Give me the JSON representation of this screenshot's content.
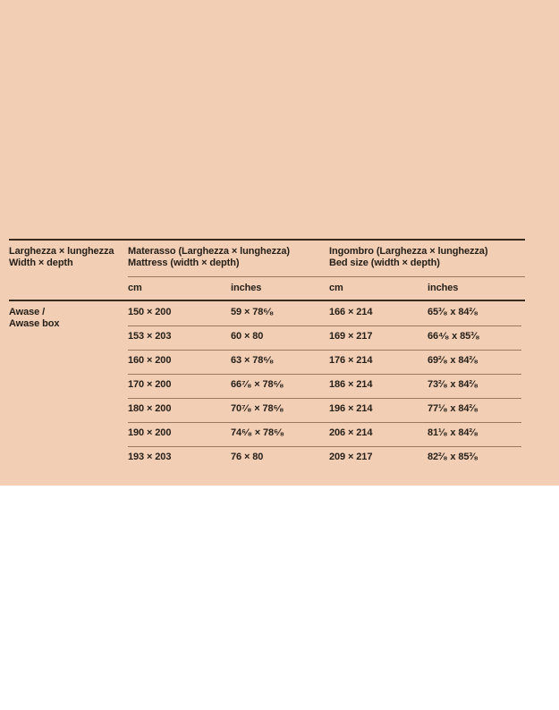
{
  "theme": {
    "panel_bg": "#f2ceb5",
    "rule_dark": "#3a2b1e",
    "rule_light": "#9a785f",
    "text": "#262019"
  },
  "table": {
    "groups": {
      "sizes": {
        "line1": "Larghezza × lunghezza",
        "line2": "Width × depth"
      },
      "mattress": {
        "line1": "Materasso (Larghezza × lunghezza)",
        "line2": "Mattress (width × depth)"
      },
      "bed": {
        "line1": "Ingombro (Larghezza × lunghezza)",
        "line2": "Bed size (width × depth)"
      }
    },
    "subheaders": {
      "mattress_cm": "cm",
      "mattress_inches": "inches",
      "bed_cm": "cm",
      "bed_inches": "inches"
    },
    "row_label": {
      "line1": "Awase /",
      "line2": "Awase box"
    },
    "rows": [
      {
        "mattress_cm": "150 × 200",
        "mattress_inches": "59 × 78⁶⁄₈",
        "bed_cm": "166 × 214",
        "bed_inches": "65³⁄₈ x 84²⁄₈"
      },
      {
        "mattress_cm": "153 × 203",
        "mattress_inches": "60 × 80",
        "bed_cm": "169 × 217",
        "bed_inches": "66⁴⁄₈ x 85³⁄₈"
      },
      {
        "mattress_cm": "160 × 200",
        "mattress_inches": "63 × 78⁶⁄₈",
        "bed_cm": "176 × 214",
        "bed_inches": "69²⁄₈ x 84²⁄₈"
      },
      {
        "mattress_cm": "170 × 200",
        "mattress_inches": "66⁷⁄₈ × 78⁶⁄₈",
        "bed_cm": "186 × 214",
        "bed_inches": "73²⁄₈ x 84²⁄₈"
      },
      {
        "mattress_cm": "180 × 200",
        "mattress_inches": "70⁷⁄₈ × 78⁶⁄₈",
        "bed_cm": "196 × 214",
        "bed_inches": "77¹⁄₈ x 84²⁄₈"
      },
      {
        "mattress_cm": "190 × 200",
        "mattress_inches": "74⁶⁄₈ × 78⁶⁄₈",
        "bed_cm": "206 × 214",
        "bed_inches": "81¹⁄₈ x 84²⁄₈"
      },
      {
        "mattress_cm": "193 × 203",
        "mattress_inches": "76 × 80",
        "bed_cm": "209 × 217",
        "bed_inches": "82²⁄₈ x 85³⁄₈"
      }
    ]
  }
}
